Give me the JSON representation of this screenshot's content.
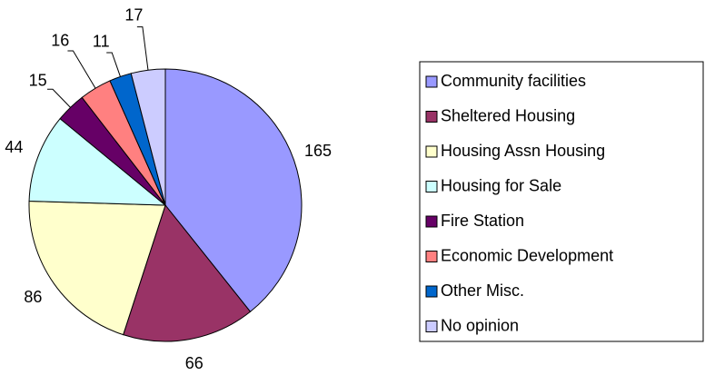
{
  "chart_data": {
    "type": "pie",
    "categories": [
      "Community facilities",
      "Sheltered Housing",
      "Housing Assn Housing",
      "Housing for Sale",
      "Fire Station",
      "Economic Development",
      "Other Misc.",
      "No opinion"
    ],
    "values": [
      165,
      66,
      86,
      44,
      15,
      16,
      11,
      17
    ],
    "colors": [
      "#9999ff",
      "#993366",
      "#ffffcc",
      "#ccffff",
      "#660066",
      "#ff8080",
      "#0066cc",
      "#ccccff"
    ],
    "legend": "right"
  }
}
